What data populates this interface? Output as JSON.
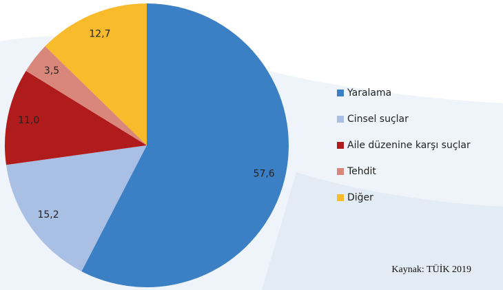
{
  "chart_data": {
    "type": "pie",
    "categories": [
      "Yaralama",
      "Cinsel suçlar",
      "Aile düzenine karşı suçlar",
      "Tehdit",
      "Diğer"
    ],
    "values": [
      57.6,
      15.2,
      11.0,
      3.5,
      12.7
    ],
    "value_labels": [
      "57,6",
      "15,2",
      "11,0",
      "3,5",
      "12,7"
    ],
    "colors": [
      "#3b7fc4",
      "#a9bfe4",
      "#b01c1c",
      "#da877b",
      "#f7bb2b"
    ],
    "legend": "right",
    "annotation": "Kaynak: TÜİK 2019"
  }
}
